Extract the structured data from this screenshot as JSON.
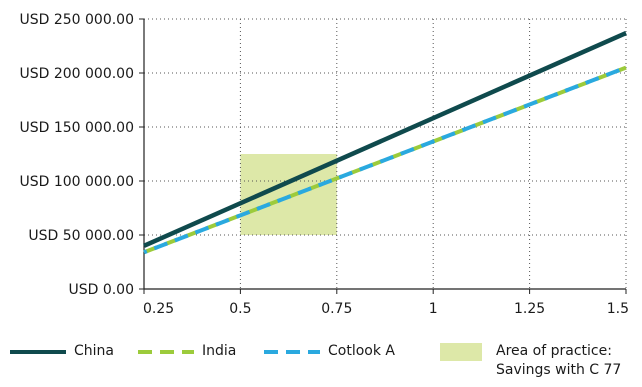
{
  "chart_data": {
    "type": "line",
    "title": "",
    "xlabel": "",
    "ylabel": "",
    "x_ticks": [
      0.25,
      0.5,
      0.75,
      1,
      1.25,
      1.5
    ],
    "x_tick_labels": [
      "0.25",
      "0.5",
      "0.75",
      "1",
      "1.25",
      "1.5"
    ],
    "y_ticks": [
      0,
      50000,
      100000,
      150000,
      200000,
      250000
    ],
    "y_tick_labels": [
      "USD 0.00",
      "USD 50 000.00",
      "USD 100 000.00",
      "USD 150 000.00",
      "USD 200 000.00",
      "USD 250 000.00"
    ],
    "xlim": [
      0.25,
      1.5
    ],
    "ylim": [
      0,
      250000
    ],
    "grid": true,
    "legend_position": "bottom",
    "series": [
      {
        "name": "China",
        "color": "#0f4a4d",
        "style": "solid",
        "x": [
          0.25,
          1.5
        ],
        "y": [
          40000,
          237000
        ]
      },
      {
        "name": "India",
        "color": "#9ccb3b",
        "style": "dashed",
        "x": [
          0.25,
          1.5
        ],
        "y": [
          34000,
          205000
        ]
      },
      {
        "name": "Cotlook A",
        "color": "#2aa9df",
        "style": "dashed",
        "x": [
          0.25,
          1.5
        ],
        "y": [
          34000,
          205000
        ]
      }
    ],
    "region": {
      "name": "Area of practice:\nSavings with C 77",
      "label_lines": [
        "Area of practice:",
        "Savings with C 77"
      ],
      "color": "#dde8a8",
      "x": [
        0.5,
        0.75
      ],
      "y": [
        50000,
        125000
      ]
    }
  }
}
